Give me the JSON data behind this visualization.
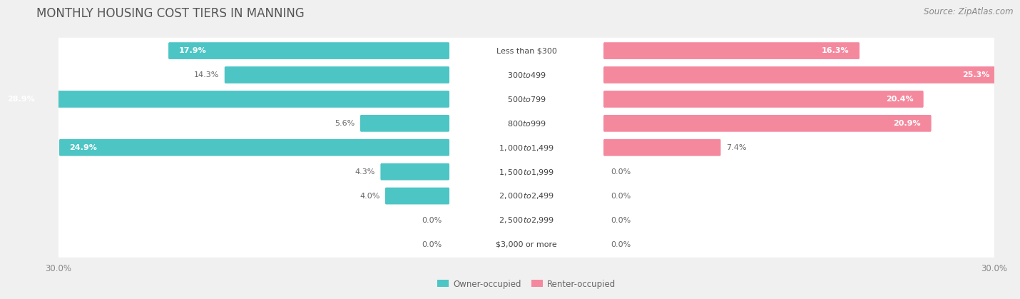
{
  "title": "MONTHLY HOUSING COST TIERS IN MANNING",
  "source": "Source: ZipAtlas.com",
  "categories": [
    "Less than $300",
    "$300 to $499",
    "$500 to $799",
    "$800 to $999",
    "$1,000 to $1,499",
    "$1,500 to $1,999",
    "$2,000 to $2,499",
    "$2,500 to $2,999",
    "$3,000 or more"
  ],
  "owner_values": [
    17.9,
    14.3,
    28.9,
    5.6,
    24.9,
    4.3,
    4.0,
    0.0,
    0.0
  ],
  "renter_values": [
    16.3,
    25.3,
    20.4,
    20.9,
    7.4,
    0.0,
    0.0,
    0.0,
    0.0
  ],
  "owner_color": "#4dc5c5",
  "renter_color": "#f4899e",
  "owner_label": "Owner-occupied",
  "renter_label": "Renter-occupied",
  "axis_max": 30.0,
  "bg_color": "#f0f0f0",
  "row_bg_color": "#ffffff",
  "title_color": "#555555",
  "label_color": "#666666",
  "tick_label_color": "#888888",
  "title_fontsize": 12,
  "source_fontsize": 8.5,
  "cat_fontsize": 8.0,
  "val_fontsize": 8.0,
  "axis_label_fontsize": 8.5
}
